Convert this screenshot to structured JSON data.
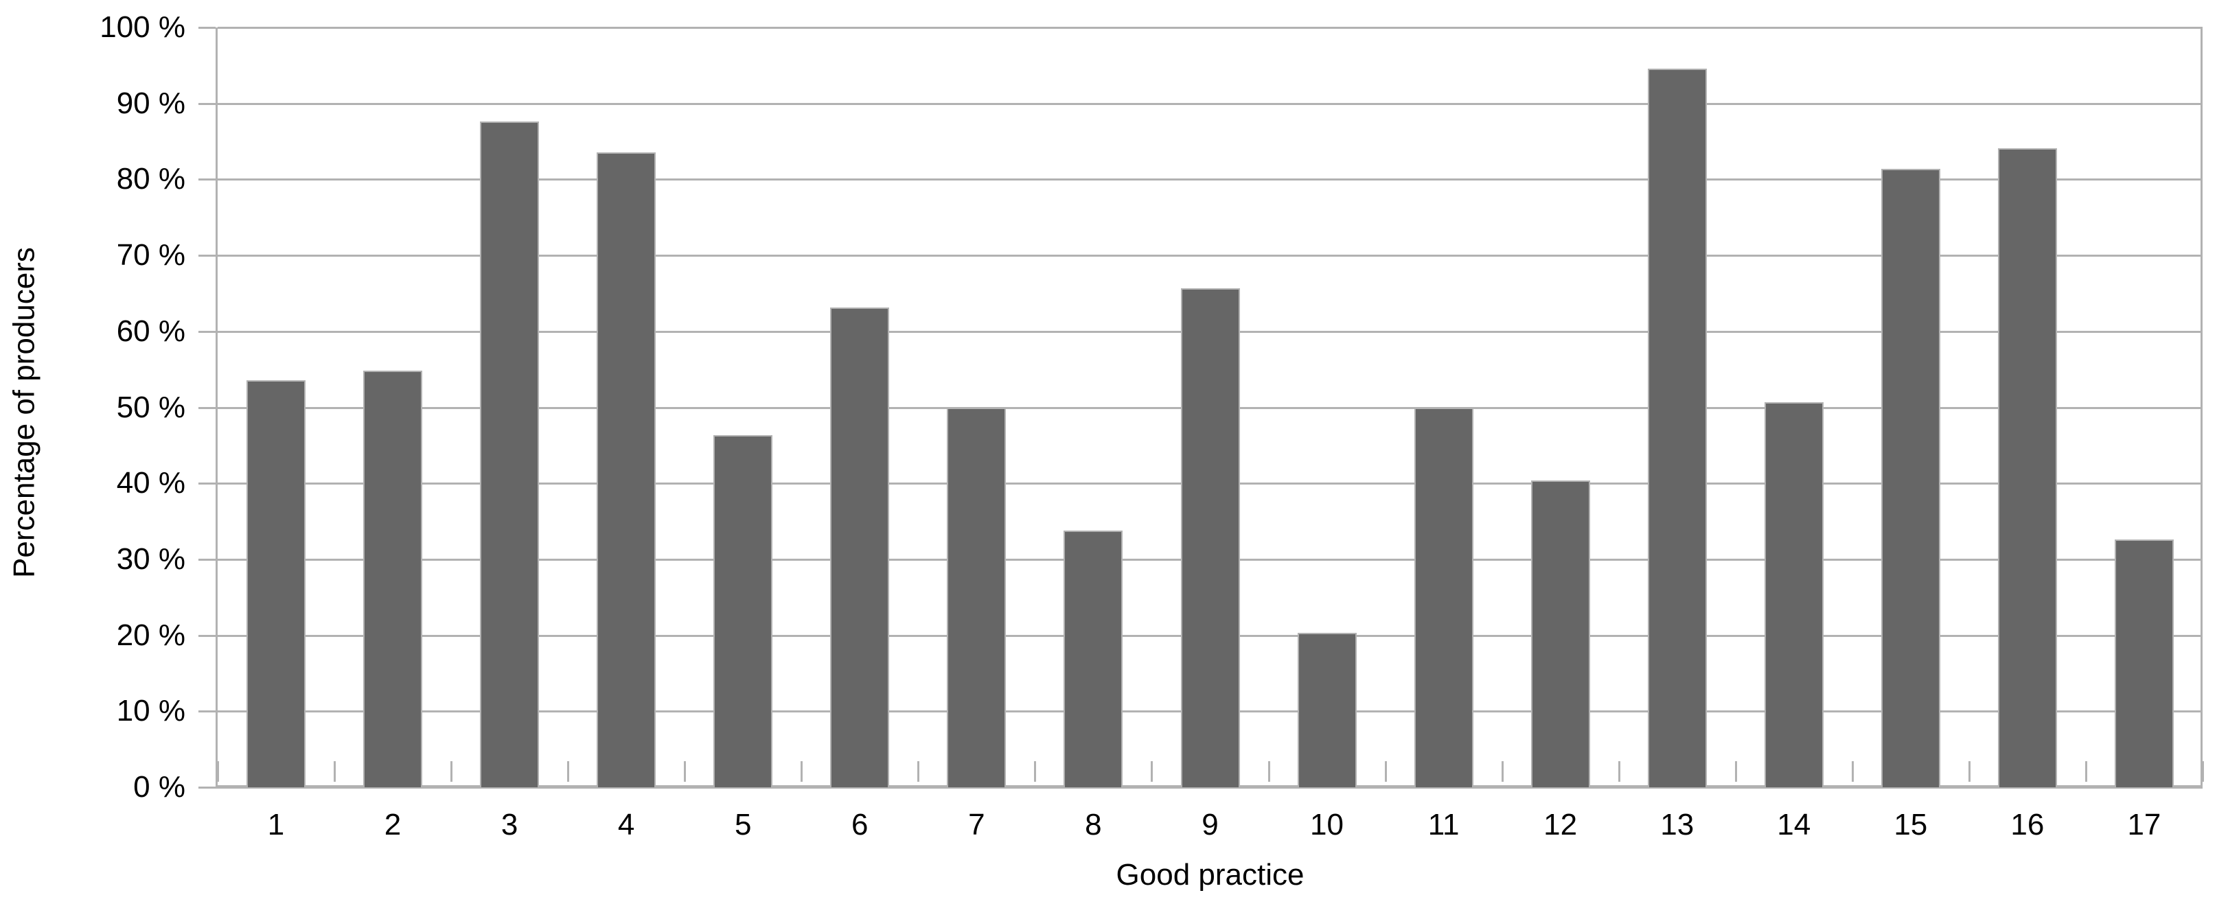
{
  "chart_data": {
    "type": "bar",
    "title": "",
    "xlabel": "Good practice",
    "ylabel": "Percentage of producers",
    "categories": [
      "1",
      "2",
      "3",
      "4",
      "5",
      "6",
      "7",
      "8",
      "9",
      "10",
      "11",
      "12",
      "13",
      "14",
      "15",
      "16",
      "17"
    ],
    "values": [
      53.6,
      54.8,
      87.6,
      83.6,
      46.3,
      63.1,
      50.0,
      33.8,
      65.7,
      20.3,
      50.0,
      40.4,
      94.6,
      50.7,
      81.4,
      84.1,
      32.6
    ],
    "ylim": [
      0,
      100
    ],
    "ytick_step": 10,
    "ytick_labels": [
      "0 %",
      "10 %",
      "20 %",
      "30 %",
      "40 %",
      "50 %",
      "60 %",
      "70 %",
      "80 %",
      "90 %",
      "100 %"
    ],
    "grid": true,
    "legend": "none",
    "bar_color": "#666666",
    "bar_border_color": "#b2b2b2",
    "grid_color": "#b2b2b2",
    "axis_color": "#b2b2b2",
    "text_color": "#000000",
    "background_color": "#ffffff"
  }
}
